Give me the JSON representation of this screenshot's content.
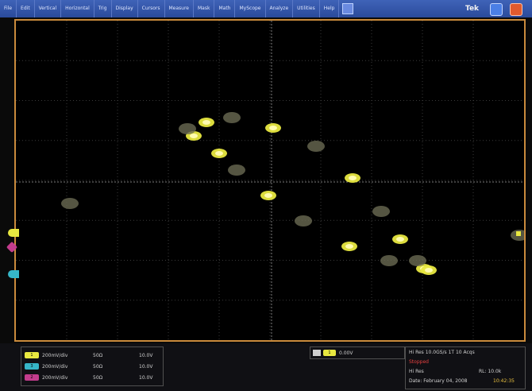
{
  "menubar": {
    "items": [
      "File",
      "Edit",
      "Vertical",
      "Horizontal",
      "Trig",
      "Display",
      "Cursors",
      "Measure",
      "Mask",
      "Math",
      "MyScope",
      "Analyze",
      "Utilities",
      "Help"
    ],
    "brand": "Tek"
  },
  "channels": [
    {
      "label": "1",
      "scale": "200mV/div",
      "coupling": "50Ω",
      "extra": "10.0V",
      "color": "#e8e840"
    },
    {
      "label": "3",
      "scale": "200mV/div",
      "coupling": "50Ω",
      "extra": "10.0V",
      "color": "#36b6c8"
    },
    {
      "label": "2",
      "scale": "200mV/div",
      "coupling": "50Ω",
      "extra": "10.0V",
      "color": "#c23c8c"
    }
  ],
  "trigger": {
    "channel": "1",
    "level": "0.00V"
  },
  "acquisition": {
    "line1": "Hi Res 10.0GS/s 1T 10 Acqs",
    "status": "Stopped",
    "line3_left": "Hi Res",
    "line3_right": "RL: 10.0k",
    "date_label": "Date: February 04, 2008",
    "time": "10:42:35"
  },
  "colors": {
    "accent_yellow": "#e8e840",
    "accent_cyan": "#36b6c8",
    "accent_magenta": "#c23c8c",
    "graticule_border": "#c98a3c"
  }
}
